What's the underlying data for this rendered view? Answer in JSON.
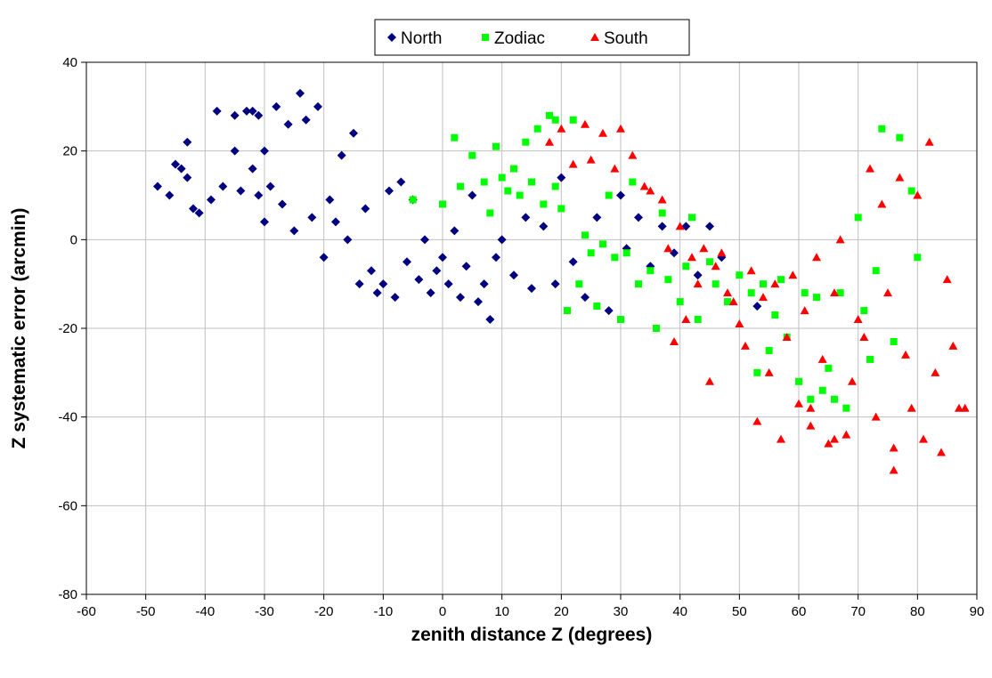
{
  "chart_data": {
    "type": "scatter",
    "x_label": "zenith distance Z (degrees)",
    "y_label": "Z systematic error (arcmin)",
    "xlim": [
      -60,
      90
    ],
    "xticks": [
      -60,
      -50,
      -40,
      -30,
      -20,
      -10,
      0,
      10,
      20,
      30,
      40,
      50,
      60,
      70,
      80,
      90
    ],
    "ylim": [
      -80,
      40
    ],
    "yticks": [
      -80,
      -60,
      -40,
      -20,
      0,
      20,
      40
    ],
    "grid": true,
    "legend": "top",
    "series": [
      {
        "name": "North",
        "color": "#000080",
        "marker": "diamond",
        "x": [
          -48,
          -46,
          -45,
          -44,
          -43,
          -43,
          -42,
          -41,
          -39,
          -38,
          -37,
          -35,
          -35,
          -34,
          -33,
          -32,
          -32,
          -31,
          -31,
          -30,
          -30,
          -29,
          -28,
          -27,
          -26,
          -25,
          -24,
          -23,
          -22,
          -21,
          -20,
          -19,
          -18,
          -17,
          -16,
          -15,
          -14,
          -13,
          -12,
          -11,
          -10,
          -9,
          -8,
          -7,
          -6,
          -5,
          -4,
          -3,
          -2,
          -1,
          0,
          1,
          2,
          3,
          4,
          5,
          6,
          7,
          8,
          9,
          10,
          12,
          14,
          15,
          17,
          19,
          20,
          22,
          24,
          26,
          28,
          30,
          31,
          33,
          35,
          37,
          39,
          41,
          43,
          45,
          47,
          53
        ],
        "values": [
          12,
          10,
          17,
          16,
          22,
          14,
          7,
          6,
          9,
          29,
          12,
          28,
          20,
          11,
          29,
          29,
          16,
          28,
          10,
          20,
          4,
          12,
          30,
          8,
          26,
          2,
          33,
          27,
          5,
          30,
          -4,
          9,
          4,
          19,
          0,
          24,
          -10,
          7,
          -7,
          -12,
          -10,
          11,
          -13,
          13,
          -5,
          9,
          -9,
          0,
          -12,
          -7,
          -4,
          -10,
          2,
          -13,
          -6,
          10,
          -14,
          -10,
          -18,
          -4,
          0,
          -8,
          5,
          -11,
          3,
          -10,
          14,
          -5,
          -13,
          5,
          -16,
          10,
          -2,
          5,
          -6,
          3,
          -3,
          3,
          -8,
          3,
          -4,
          -15
        ]
      },
      {
        "name": "Zodiac",
        "color": "#00ff00",
        "marker": "square",
        "x": [
          -5,
          0,
          2,
          3,
          5,
          7,
          8,
          9,
          10,
          11,
          12,
          13,
          14,
          15,
          16,
          17,
          18,
          19,
          19,
          20,
          21,
          22,
          23,
          24,
          25,
          26,
          27,
          28,
          29,
          30,
          31,
          32,
          33,
          35,
          36,
          37,
          38,
          40,
          41,
          42,
          43,
          45,
          46,
          48,
          50,
          52,
          53,
          54,
          55,
          56,
          57,
          58,
          60,
          61,
          62,
          63,
          64,
          65,
          66,
          67,
          68,
          70,
          71,
          72,
          73,
          74,
          76,
          77,
          79,
          80
        ],
        "values": [
          9,
          8,
          23,
          12,
          19,
          13,
          6,
          21,
          14,
          11,
          16,
          10,
          22,
          13,
          25,
          8,
          28,
          27,
          12,
          7,
          -16,
          27,
          -10,
          1,
          -3,
          -15,
          -1,
          10,
          -4,
          -18,
          -3,
          13,
          -10,
          -7,
          -20,
          6,
          -9,
          -14,
          -6,
          5,
          -18,
          -5,
          -10,
          -14,
          -8,
          -12,
          -30,
          -10,
          -25,
          -17,
          -9,
          -22,
          -32,
          -12,
          -36,
          -13,
          -34,
          -29,
          -36,
          -12,
          -38,
          5,
          -16,
          -27,
          -7,
          25,
          -23,
          23,
          11,
          -4
        ]
      },
      {
        "name": "South",
        "color": "#ff0000",
        "marker": "triangle",
        "x": [
          18,
          20,
          22,
          24,
          25,
          27,
          29,
          30,
          32,
          34,
          35,
          37,
          38,
          39,
          40,
          41,
          42,
          43,
          44,
          45,
          46,
          47,
          48,
          49,
          50,
          51,
          52,
          53,
          54,
          55,
          56,
          57,
          58,
          59,
          60,
          61,
          62,
          63,
          64,
          65,
          66,
          67,
          68,
          69,
          70,
          71,
          72,
          73,
          74,
          75,
          76,
          77,
          78,
          79,
          80,
          81,
          82,
          83,
          84,
          85,
          86,
          87,
          88,
          76,
          66,
          62
        ],
        "values": [
          22,
          25,
          17,
          26,
          18,
          24,
          16,
          25,
          19,
          12,
          11,
          9,
          -2,
          -23,
          3,
          -18,
          -4,
          -10,
          -2,
          -32,
          -6,
          -3,
          -12,
          -14,
          -19,
          -24,
          -7,
          -41,
          -13,
          -30,
          -10,
          -45,
          -22,
          -8,
          -37,
          -16,
          -42,
          -4,
          -27,
          -46,
          -12,
          0,
          -44,
          -32,
          -18,
          -22,
          16,
          -40,
          8,
          -12,
          -47,
          14,
          -26,
          -38,
          10,
          -45,
          22,
          -30,
          -48,
          -9,
          -24,
          -38,
          -38,
          -52,
          -45,
          -38
        ]
      }
    ]
  }
}
